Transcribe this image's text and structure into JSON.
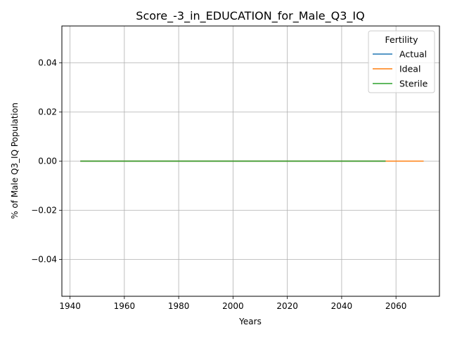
{
  "chart_data": {
    "type": "line",
    "title": "Score_-3_in_EDUCATION_for_Male_Q3_IQ",
    "xlabel": "Years",
    "ylabel": "% of Male Q3_IQ Population",
    "xlim": [
      1937,
      2076
    ],
    "ylim": [
      -0.055,
      0.055
    ],
    "x_ticks": [
      1940,
      1960,
      1980,
      2000,
      2020,
      2040,
      2060
    ],
    "x_tick_labels": [
      "1940",
      "1960",
      "1980",
      "2000",
      "2020",
      "2040",
      "2060"
    ],
    "y_ticks": [
      -0.04,
      -0.02,
      0.0,
      0.02,
      0.04
    ],
    "y_tick_labels": [
      "−0.04",
      "−0.02",
      "0.00",
      "0.02",
      "0.04"
    ],
    "grid": true,
    "legend": {
      "title": "Fertility",
      "placement": "top-right"
    },
    "series": [
      {
        "name": "Actual",
        "color": "#1f77b4",
        "x": [
          1944,
          2056
        ],
        "values": [
          0,
          0
        ]
      },
      {
        "name": "Ideal",
        "color": "#ff7f0e",
        "x": [
          1944,
          2070
        ],
        "values": [
          0,
          0
        ]
      },
      {
        "name": "Sterile",
        "color": "#2ca02c",
        "x": [
          1944,
          2056
        ],
        "values": [
          0,
          0
        ]
      }
    ]
  }
}
